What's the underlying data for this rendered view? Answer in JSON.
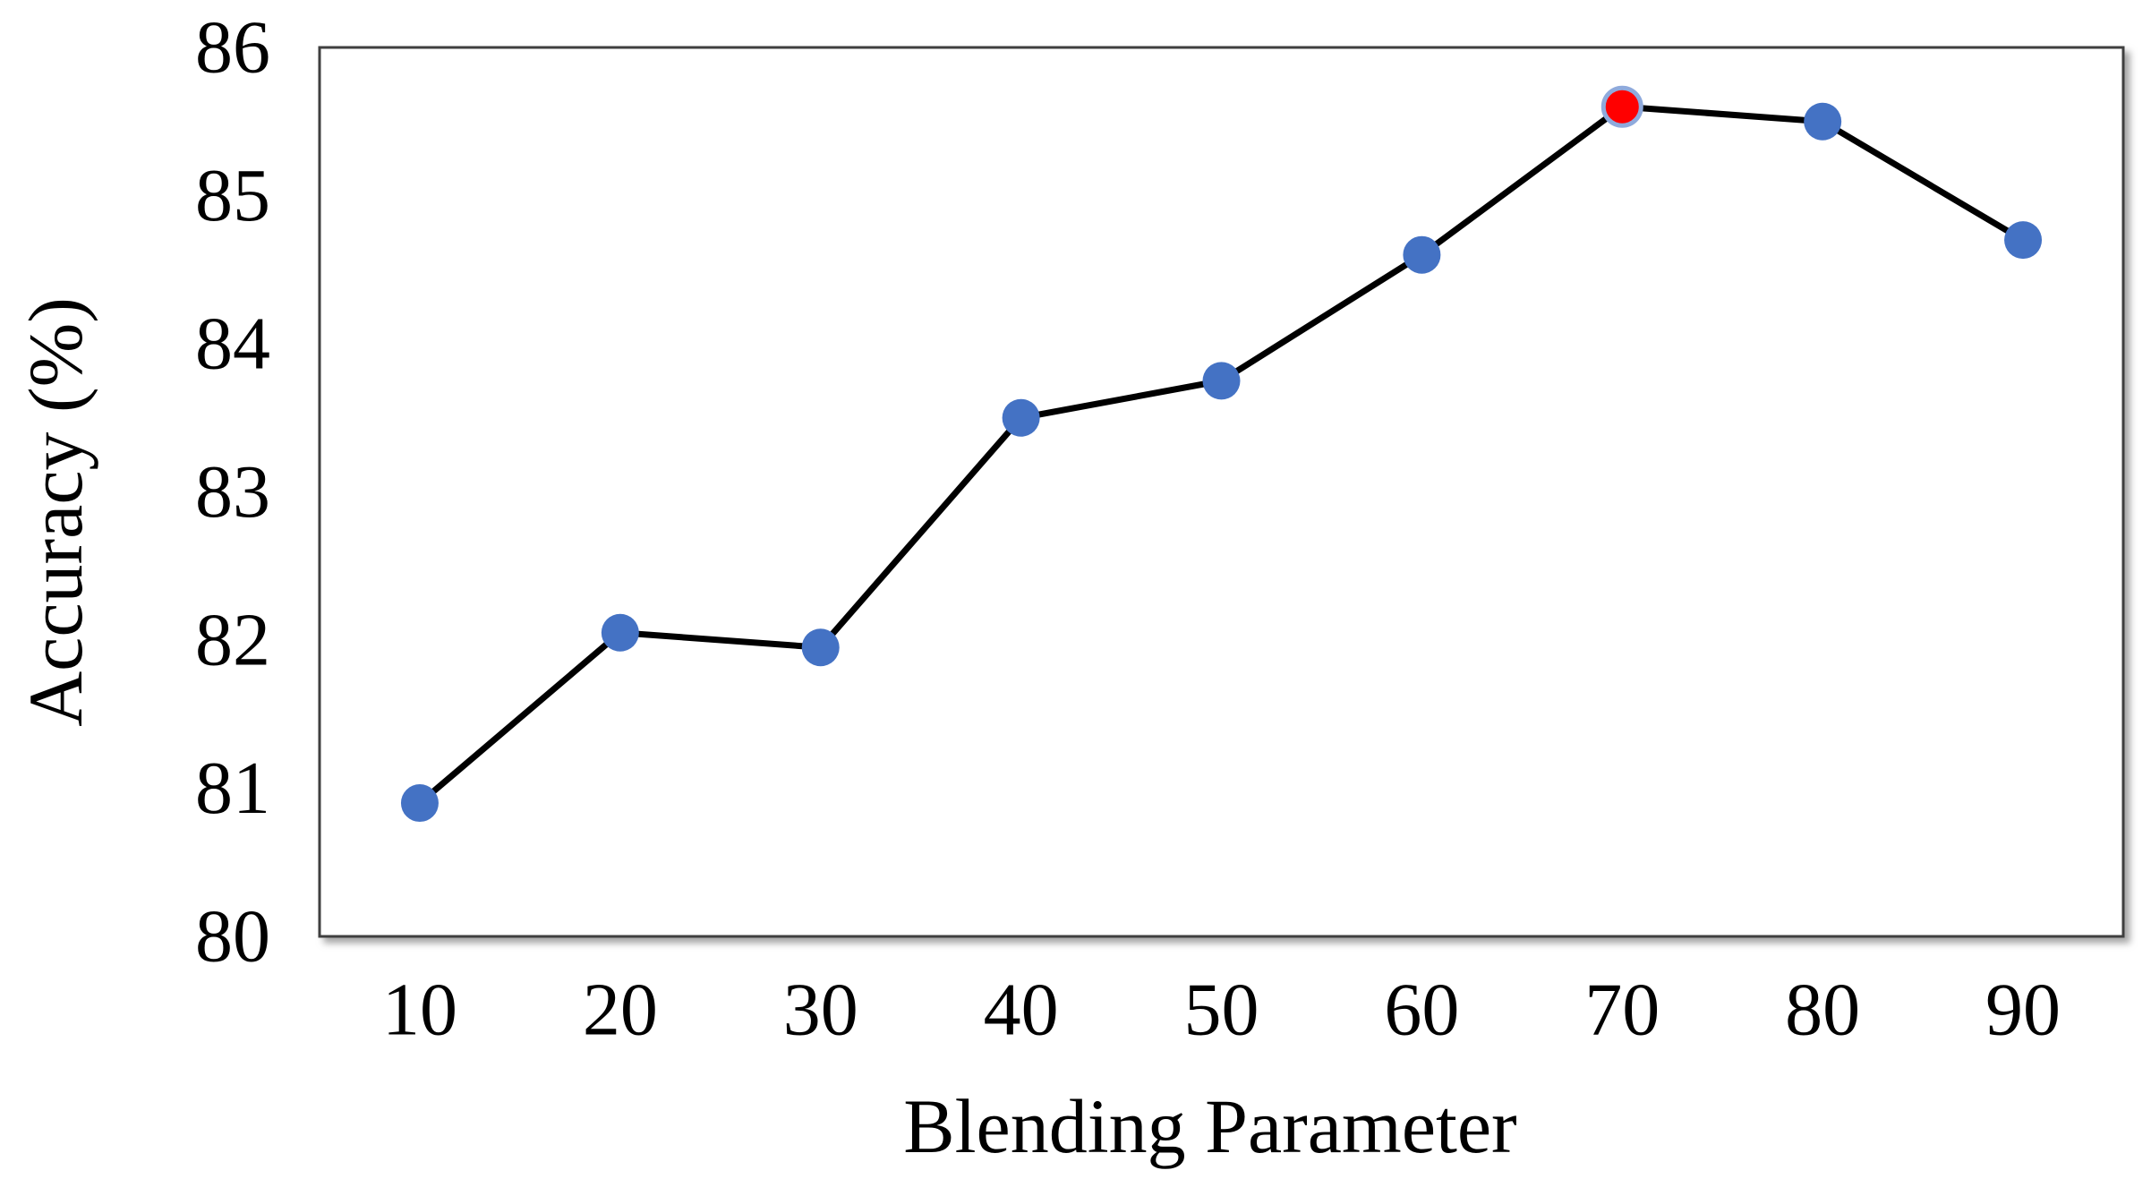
{
  "figure": {
    "background": "#FFFFFF"
  },
  "chart_data": {
    "type": "line",
    "title": "",
    "xlabel": "Blending Parameter",
    "ylabel": "Accuracy (%)",
    "x": [
      10,
      20,
      30,
      40,
      50,
      60,
      70,
      80,
      90
    ],
    "series": [
      {
        "name": "Accuracy",
        "values": [
          80.9,
          82.05,
          81.95,
          83.5,
          83.75,
          84.6,
          85.6,
          85.5,
          84.7
        ]
      }
    ],
    "x_ticks": [
      "10",
      "20",
      "30",
      "40",
      "50",
      "60",
      "70",
      "80",
      "90"
    ],
    "y_ticks": [
      "80",
      "81",
      "82",
      "83",
      "84",
      "85",
      "86"
    ],
    "xlim": [
      5,
      95
    ],
    "ylim": [
      80,
      86
    ],
    "grid": false,
    "legend": "none",
    "line_color": "#000000",
    "marker_color": "#4472C4",
    "highlight_point": {
      "x": 70,
      "value": 85.6,
      "fill": "#FF0000",
      "border": "#8FAADC"
    }
  }
}
